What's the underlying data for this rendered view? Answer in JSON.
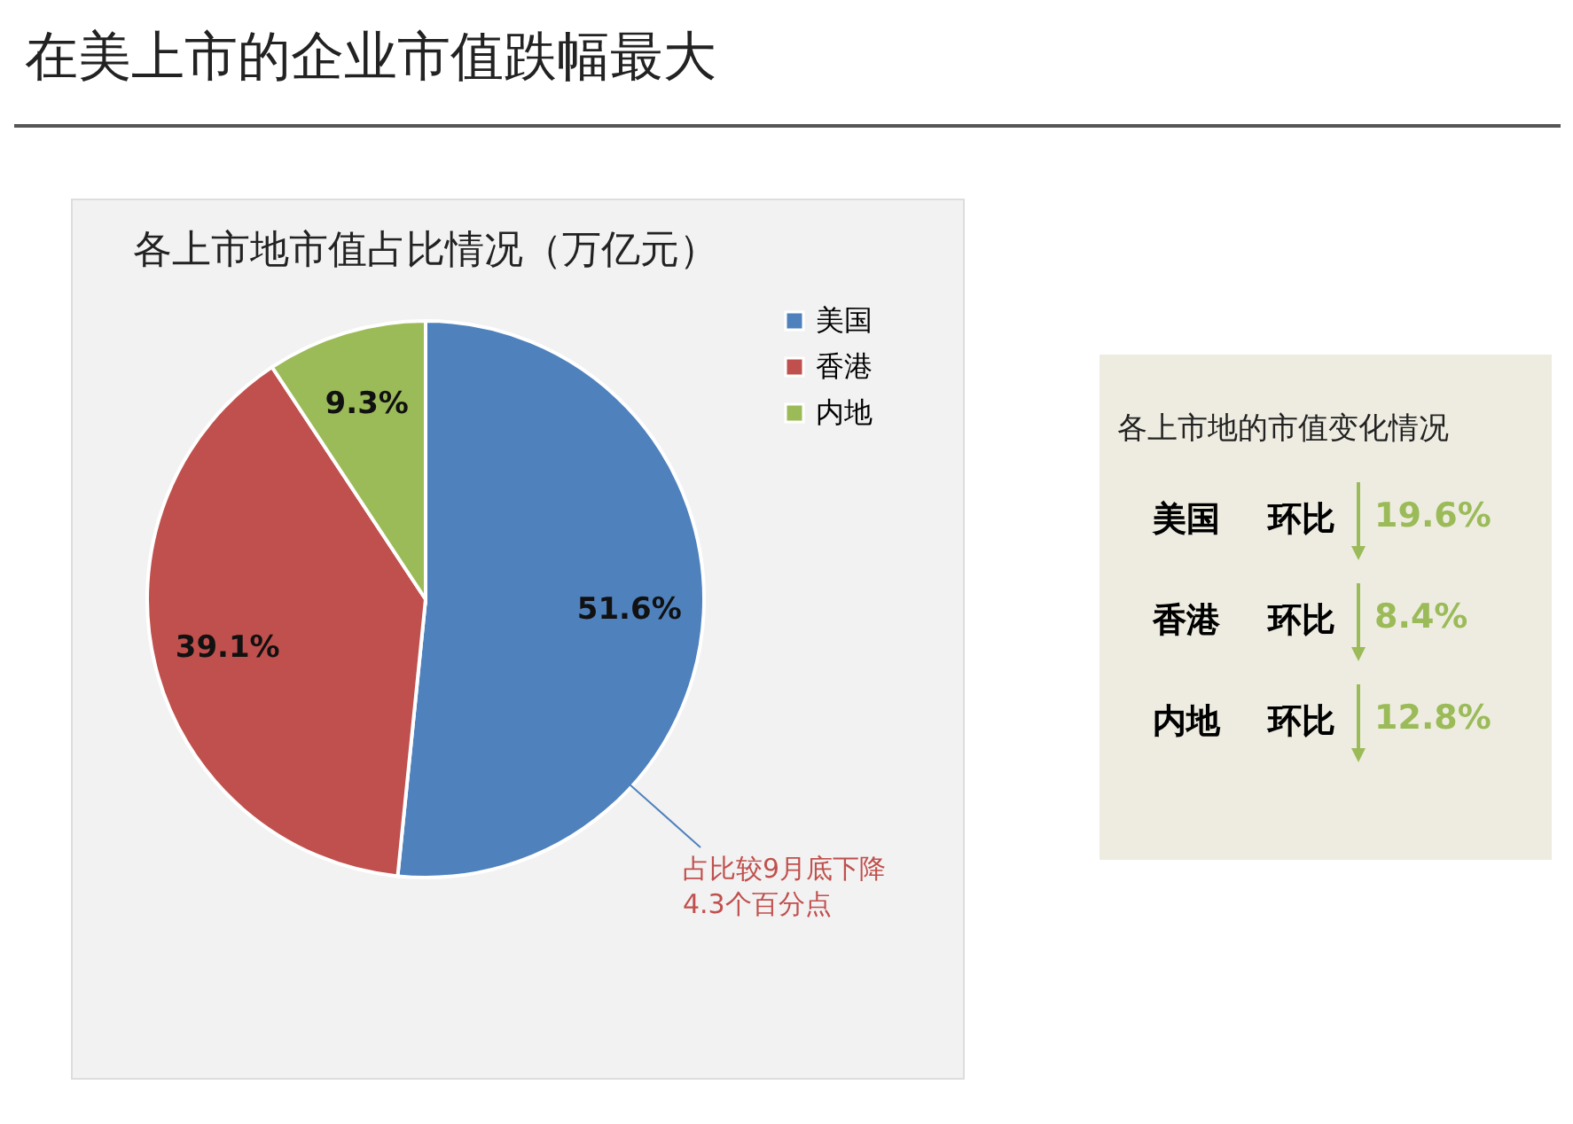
{
  "chart_data": {
    "type": "pie",
    "title": "在美上市的企业市值跌幅最大",
    "subtitle": "各上市地市值占比情况（万亿元）",
    "categories": [
      "美国",
      "香港",
      "内地"
    ],
    "values": [
      51.6,
      39.1,
      9.3
    ],
    "colors": [
      "#4f81bd",
      "#c0504d",
      "#9bbb59"
    ],
    "value_labels": [
      "51.6%",
      "39.1%",
      "9.3%"
    ],
    "legend": "right",
    "annotations": [
      "占比较9月底下降4.3个百分点",
      "各上市地的市值变化情况",
      "美国",
      "环比",
      "19.6%",
      "香港",
      "环比",
      "8.4%",
      "内地",
      "环比",
      "12.8%"
    ]
  }
}
